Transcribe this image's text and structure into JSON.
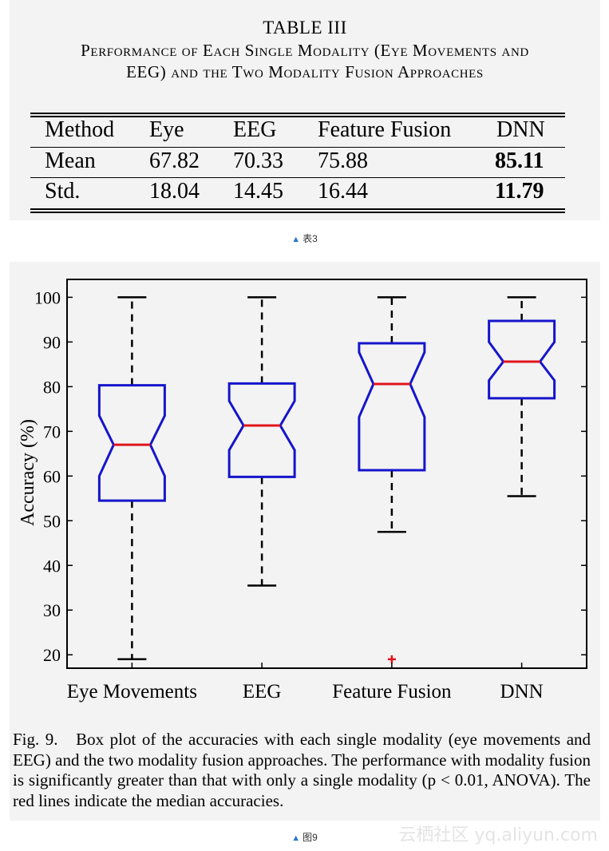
{
  "table": {
    "title": "TABLE III",
    "caption_line1": "Performance of Each Single Modality (Eye Movements and",
    "caption_line2": "EEG) and the Two Modality Fusion Approaches",
    "header": [
      "Method",
      "Eye",
      "EEG",
      "Feature Fusion",
      "DNN"
    ],
    "rows": [
      {
        "label": "Mean",
        "values": [
          "67.82",
          "70.33",
          "75.88",
          "85.11"
        ]
      },
      {
        "label": "Std.",
        "values": [
          "18.04",
          "14.45",
          "16.44",
          "11.79"
        ]
      }
    ],
    "bold_column": "DNN",
    "sub_caption": "表3"
  },
  "figure": {
    "caption_prefix": "Fig. 9.",
    "caption_text": "Box plot of the accuracies with each single modality (eye movements and EEG) and the two modality fusion approaches. The performance with modality fusion is significantly greater than that with only a single modality (p < 0.01, ANOVA). The red lines indicate the median accuracies.",
    "sub_caption": "图9",
    "watermark": "云栖社区 yq.aliyun.com"
  },
  "chart_data": {
    "type": "box",
    "title": "",
    "xlabel": "",
    "ylabel": "Accuracy (%)",
    "ylim": [
      17,
      104
    ],
    "yticks": [
      20,
      30,
      40,
      50,
      60,
      70,
      80,
      90,
      100
    ],
    "categories": [
      "Eye Movements",
      "EEG",
      "Feature Fusion",
      "DNN"
    ],
    "boxes": [
      {
        "whisker_low": 19,
        "q1": 54.5,
        "median": 67,
        "q3": 80.3,
        "whisker_high": 100,
        "notch_low": 60,
        "notch_high": 73.5,
        "outliers": []
      },
      {
        "whisker_low": 35.5,
        "q1": 59.8,
        "median": 71.3,
        "q3": 80.7,
        "whisker_high": 100,
        "notch_low": 65.8,
        "notch_high": 76.8,
        "outliers": []
      },
      {
        "whisker_low": 47.5,
        "q1": 61.3,
        "median": 80.6,
        "q3": 89.7,
        "whisker_high": 100,
        "notch_low": 73.2,
        "notch_high": 87.7,
        "outliers": [
          19
        ]
      },
      {
        "whisker_low": 55.5,
        "q1": 77.4,
        "median": 85.6,
        "q3": 94.7,
        "whisker_high": 100,
        "notch_low": 81.4,
        "notch_high": 90.0,
        "outliers": []
      }
    ],
    "colors": {
      "box": "#1515cc",
      "median": "#e0141c",
      "whisker": "#000000",
      "outlier": "#e0141c"
    },
    "grid": false,
    "legend": "none"
  }
}
